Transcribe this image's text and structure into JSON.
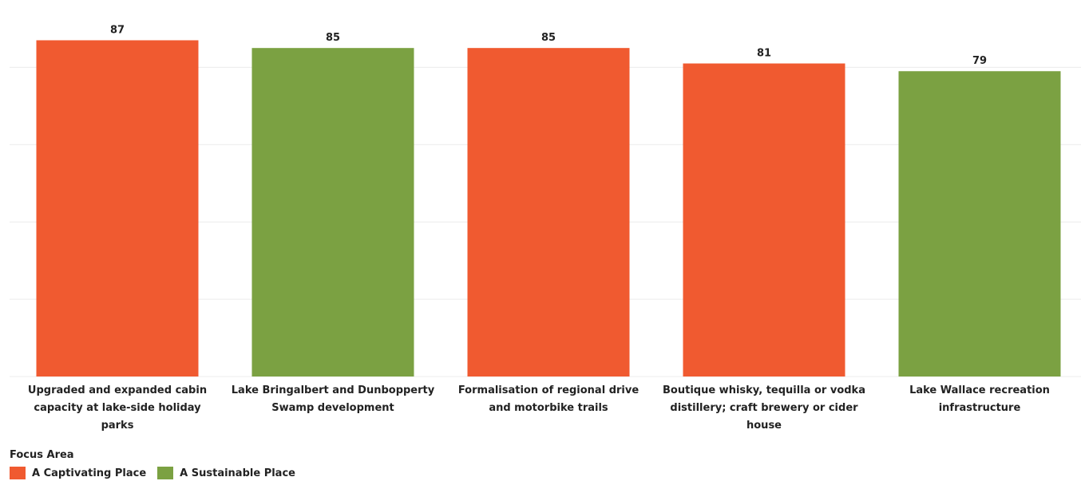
{
  "chart_data": {
    "type": "bar",
    "categories": [
      "Upgraded and expanded cabin capacity at lake-side holiday parks",
      "Lake Bringalbert and Dunbopperty Swamp development",
      "Formalisation of regional drive and motorbike trails",
      "Boutique whisky, tequilla or vodka distillery; craft brewery or cider house",
      "Lake Wallace recreation infrastructure"
    ],
    "category_lines": [
      [
        "Upgraded and expanded cabin",
        "capacity at lake-side holiday",
        "parks"
      ],
      [
        "Lake Bringalbert and Dunbopperty",
        "Swamp development"
      ],
      [
        "Formalisation of regional drive",
        "and motorbike trails"
      ],
      [
        "Boutique whisky, tequilla or vodka",
        "distillery; craft brewery or cider",
        "house"
      ],
      [
        "Lake Wallace recreation",
        "infrastructure"
      ]
    ],
    "values": [
      87,
      85,
      85,
      81,
      79
    ],
    "value_labels": [
      "87",
      "85",
      "85",
      "81",
      "79"
    ],
    "groups": [
      "A Captivating Place",
      "A Sustainable Place",
      "A Captivating Place",
      "A Captivating Place",
      "A Sustainable Place"
    ],
    "ylim": [
      0,
      100
    ],
    "grid": true,
    "legend": {
      "title": "Focus Area",
      "placement": "bottom-left",
      "items": [
        {
          "label": "A Captivating Place",
          "color": "#F05A30"
        },
        {
          "label": "A Sustainable Place",
          "color": "#7BA142"
        }
      ]
    }
  },
  "colors": {
    "A Captivating Place": "#F05A30",
    "A Sustainable Place": "#7BA142",
    "grid": "#ececec"
  }
}
